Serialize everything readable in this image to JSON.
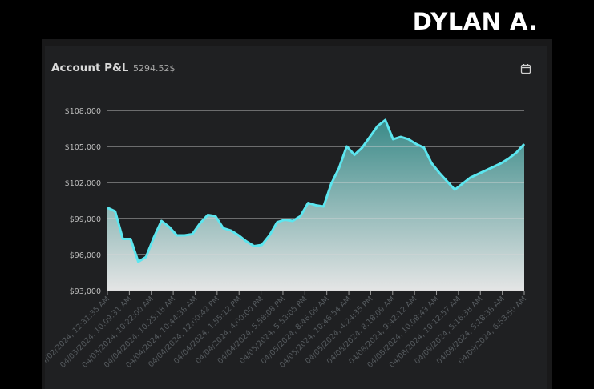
{
  "header": {
    "user_name": "DYLAN A."
  },
  "card": {
    "title": "Account P&L",
    "value": "5294.52$",
    "calendar_icon": "calendar-icon"
  },
  "colors": {
    "background": "#000000",
    "card": "#1f2022",
    "line": "#5ce6ef",
    "fill_top": "#3a8a88",
    "fill_bottom": "#e4e5e5"
  },
  "chart_data": {
    "type": "area",
    "title": "",
    "xlabel": "",
    "ylabel": "",
    "ylim": [
      93000,
      109000
    ],
    "yticks": [
      93000,
      96000,
      99000,
      102000,
      105000,
      108000
    ],
    "ytick_labels": [
      "$93,000",
      "$96,000",
      "$99,000",
      "$102,000",
      "$105,000",
      "$108,000"
    ],
    "grid": true,
    "x_labels": [
      "04/02/2024, 12:31:35 AM",
      "04/03/2024, 10:09:31 AM",
      "04/03/2024, 10:22:00 AM",
      "04/04/2024, 10:25:18 AM",
      "04/04/2024, 10:44:38 AM",
      "04/04/2024, 12:00:42 PM",
      "04/04/2024, 1:55:12 PM",
      "04/04/2024, 4:00:00 PM",
      "04/04/2024, 5:58:08 PM",
      "04/05/2024, 5:53:05 PM",
      "04/05/2024, 8:46:09 AM",
      "04/05/2024, 10:46:54 AM",
      "04/05/2024, 4:24:35 PM",
      "04/08/2024, 8:18:09 AM",
      "04/08/2024, 9:42:12 AM",
      "04/08/2024, 10:08:43 AM",
      "04/08/2024, 10:12:57 AM",
      "04/09/2024, 5:16:38 AM",
      "04/09/2024, 5:18:38 AM",
      "04/09/2024, 6:53:50 AM"
    ],
    "values": [
      99900,
      99600,
      97300,
      97300,
      95400,
      95800,
      97400,
      98800,
      98300,
      97600,
      97600,
      97700,
      98600,
      99300,
      99200,
      98200,
      98000,
      97600,
      97100,
      96700,
      96800,
      97600,
      98700,
      98900,
      98800,
      99200,
      100300,
      100100,
      100000,
      101900,
      103200,
      105000,
      104300,
      104900,
      105800,
      106700,
      107200,
      105600,
      105800,
      105600,
      105200,
      104900,
      103600,
      102800,
      102100,
      101400,
      101900,
      102400,
      102700,
      103000,
      103300,
      103600,
      104000,
      104500,
      105200
    ]
  }
}
